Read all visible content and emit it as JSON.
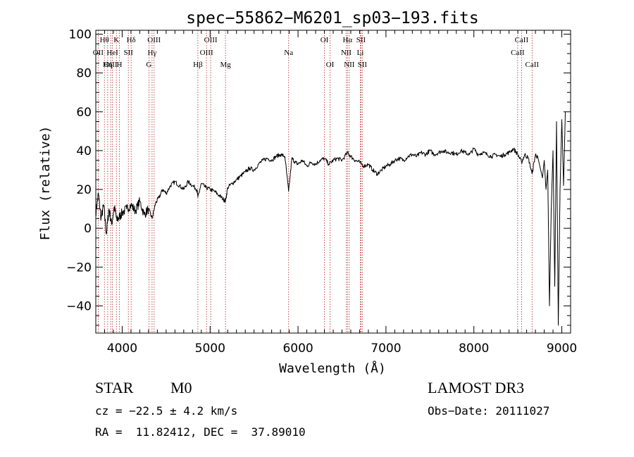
{
  "chart_data": {
    "type": "line",
    "title": "spec−55862−M6201_sp03−193.fits",
    "xlabel": "Wavelength (Å)",
    "ylabel": "Flux (relative)",
    "xlim": [
      3700,
      9100
    ],
    "ylim": [
      -54,
      102
    ],
    "xticks": [
      4000,
      5000,
      6000,
      7000,
      8000,
      9000
    ],
    "yticks": [
      -40,
      -20,
      0,
      20,
      40,
      60,
      80,
      100
    ],
    "ytick_labels": [
      "−40",
      "−20",
      "0",
      "20",
      "40",
      "60",
      "80",
      "100"
    ],
    "grid": false,
    "line_color": "#000000",
    "marker_color": "#b22222",
    "series": [
      {
        "name": "flux",
        "x": [
          3700,
          3730,
          3760,
          3790,
          3820,
          3850,
          3880,
          3910,
          3940,
          3970,
          4000,
          4050,
          4100,
          4150,
          4200,
          4250,
          4300,
          4340,
          4380,
          4420,
          4460,
          4500,
          4550,
          4600,
          4650,
          4700,
          4750,
          4800,
          4850,
          4861,
          4900,
          4950,
          5000,
          5050,
          5100,
          5150,
          5175,
          5200,
          5250,
          5300,
          5350,
          5400,
          5450,
          5500,
          5550,
          5600,
          5650,
          5700,
          5750,
          5800,
          5850,
          5893,
          5930,
          5970,
          6000,
          6050,
          6100,
          6150,
          6200,
          6250,
          6300,
          6350,
          6400,
          6450,
          6500,
          6563,
          6600,
          6650,
          6700,
          6750,
          6800,
          6850,
          6900,
          6950,
          7000,
          7050,
          7100,
          7150,
          7200,
          7250,
          7300,
          7350,
          7400,
          7450,
          7500,
          7550,
          7600,
          7650,
          7700,
          7750,
          7800,
          7850,
          7900,
          7950,
          8000,
          8050,
          8100,
          8150,
          8200,
          8250,
          8300,
          8350,
          8400,
          8450,
          8500,
          8542,
          8580,
          8620,
          8662,
          8700,
          8730,
          8760,
          8780,
          8800,
          8820,
          8840,
          8860,
          8880,
          8900,
          8920,
          8940,
          8960,
          8980,
          9000,
          9020,
          9040
        ],
        "y": [
          8,
          18,
          5,
          12,
          -3,
          10,
          2,
          11,
          4,
          6,
          8,
          10,
          12,
          9,
          14,
          7,
          10,
          5,
          13,
          16,
          20,
          18,
          22,
          24,
          22,
          20,
          24,
          22,
          20,
          16,
          23,
          21,
          20,
          19,
          17,
          15,
          14,
          21,
          23,
          25,
          27,
          29,
          31,
          30,
          33,
          35,
          36,
          35,
          37,
          38,
          37,
          19,
          36,
          34,
          33,
          35,
          32,
          34,
          33,
          35,
          36,
          33,
          35,
          36,
          35,
          39,
          37,
          35,
          34,
          32,
          33,
          30,
          28,
          30,
          32,
          33,
          35,
          36,
          35,
          37,
          38,
          37,
          39,
          38,
          40,
          38,
          39,
          40,
          39,
          39,
          38,
          40,
          39,
          38,
          41,
          38,
          39,
          38,
          37,
          38,
          37,
          38,
          39,
          41,
          38,
          34,
          38,
          36,
          28,
          38,
          36,
          30,
          26,
          35,
          20,
          30,
          -40,
          10,
          40,
          -30,
          55,
          -50,
          20,
          56,
          22,
          60
        ]
      }
    ],
    "lines": [
      {
        "name": "Hθ",
        "x": 3798,
        "row": 1
      },
      {
        "name": "OII",
        "x": 3727,
        "row": 2
      },
      {
        "name": "OIII",
        "x": 3869,
        "row": 3
      },
      {
        "name": "K",
        "x": 3934,
        "row": 1
      },
      {
        "name": "Hδ",
        "x": 4102,
        "row": 1
      },
      {
        "name": "HeI",
        "x": 3889,
        "row": 2
      },
      {
        "name": "SII",
        "x": 4070,
        "row": 2
      },
      {
        "name": "Hη",
        "x": 3835,
        "row": 3
      },
      {
        "name": "H",
        "x": 3968,
        "row": 3
      },
      {
        "name": "OIII",
        "x": 4363,
        "row": 1
      },
      {
        "name": "Hγ",
        "x": 4340,
        "row": 2
      },
      {
        "name": "G",
        "x": 4304,
        "row": 3
      },
      {
        "name": "OIII",
        "x": 5007,
        "row": 1
      },
      {
        "name": "OIII",
        "x": 4959,
        "row": 2
      },
      {
        "name": "Hβ",
        "x": 4861,
        "row": 3
      },
      {
        "name": "Mg",
        "x": 5175,
        "row": 3
      },
      {
        "name": "Na",
        "x": 5893,
        "row": 2
      },
      {
        "name": "OI",
        "x": 6300,
        "row": 1
      },
      {
        "name": "OI",
        "x": 6364,
        "row": 3
      },
      {
        "name": "Hα",
        "x": 6563,
        "row": 1
      },
      {
        "name": "NII",
        "x": 6548,
        "row": 2
      },
      {
        "name": "NII",
        "x": 6583,
        "row": 3
      },
      {
        "name": "SII",
        "x": 6716,
        "row": 1
      },
      {
        "name": "Li",
        "x": 6708,
        "row": 2
      },
      {
        "name": "SII",
        "x": 6731,
        "row": 3
      },
      {
        "name": "CaII",
        "x": 8542,
        "row": 1
      },
      {
        "name": "CaII",
        "x": 8498,
        "row": 2
      },
      {
        "name": "CaII",
        "x": 8662,
        "row": 3
      }
    ]
  },
  "info": {
    "class": "STAR",
    "subclass": "M0",
    "survey": "LAMOST DR3",
    "cz": "cz = −22.5 ± 4.2 km/s",
    "obs_date": "Obs−Date: 20111027",
    "coords": "RA =  11.82412, DEC =  37.89010"
  }
}
